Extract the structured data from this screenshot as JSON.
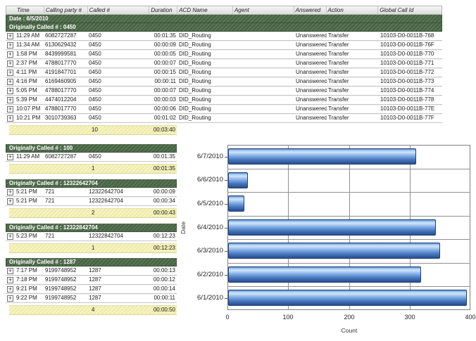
{
  "report": {
    "columns": [
      "",
      "Time",
      "Calling party #",
      "Called #",
      "Duration",
      "ACD Name",
      "Agent",
      "Answered",
      "Action",
      "Global Call Id"
    ],
    "date_band": "Date : 6/5/2010",
    "groups": [
      {
        "title": "Originally Called # : 0450",
        "wide": true,
        "rows": [
          [
            "11:29 AM",
            "6082727287",
            "0450",
            "00:01:35",
            "DID_Routing",
            "",
            "Unanswered",
            "Transfer",
            "10103-D0-0011B-768"
          ],
          [
            "11:34 AM",
            "6130629432",
            "0450",
            "00:00:09",
            "DID_Routing",
            "",
            "Unanswered",
            "Transfer",
            "10103-D0-0011B-76F"
          ],
          [
            "1:58 PM",
            "8439999581",
            "0450",
            "00:00:05",
            "DID_Routing",
            "",
            "Unanswered",
            "Transfer",
            "10103-D0-0011B-770"
          ],
          [
            "2:37 PM",
            "4788017770",
            "0450",
            "00:00:07",
            "DID_Routing",
            "",
            "Unanswered",
            "Transfer",
            "10103-D0-0011B-771"
          ],
          [
            "4:11 PM",
            "4191847701",
            "0450",
            "00:00:15",
            "DID_Routing",
            "",
            "Unanswered",
            "Transfer",
            "10103-D0-0011B-772"
          ],
          [
            "4:16 PM",
            "6169460905",
            "0450",
            "00:00:11",
            "DID_Routing",
            "",
            "Unanswered",
            "Transfer",
            "10103-D0-0011B-773"
          ],
          [
            "5:05 PM",
            "4788017770",
            "0450",
            "00:00:07",
            "DID_Routing",
            "",
            "Unanswered",
            "Transfer",
            "10103-D0-0011B-774"
          ],
          [
            "5:39 PM",
            "4474012204",
            "0450",
            "00:00:03",
            "DID_Routing",
            "",
            "Unanswered",
            "Transfer",
            "10103-D0-0011B-778"
          ],
          [
            "10:07 PM",
            "4788017770",
            "0450",
            "00:00:06",
            "DID_Routing",
            "",
            "Unanswered",
            "Transfer",
            "10103-D0-0011B-77E"
          ],
          [
            "10:21 PM",
            "3010739363",
            "0450",
            "00:01:02",
            "DID_Routing",
            "",
            "Unanswered",
            "Transfer",
            "10103-D0-0011B-77F"
          ]
        ],
        "summary": {
          "count": "10",
          "total_duration": "00:03:40"
        }
      },
      {
        "title": "Originally Called # : 100",
        "wide": false,
        "rows": [
          [
            "11:29 AM",
            "6082727287",
            "0450",
            "00:01:35"
          ]
        ],
        "summary": {
          "count": "1",
          "total_duration": "00:01:35"
        }
      },
      {
        "title": "Originally Called # : 12322642704",
        "wide": false,
        "rows": [
          [
            "5:21 PM",
            "721",
            "12322642704",
            "00:00:09"
          ],
          [
            "5:21 PM",
            "721",
            "12322642704",
            "00:00:34"
          ]
        ],
        "summary": {
          "count": "2",
          "total_duration": "00:00:43"
        }
      },
      {
        "title": "Originally Called # : 12322842704",
        "wide": false,
        "rows": [
          [
            "5:23 PM",
            "721",
            "12322842704",
            "00:12:23"
          ]
        ],
        "summary": {
          "count": "1",
          "total_duration": "00:12:23"
        }
      },
      {
        "title": "Originally Called # : 1287",
        "wide": false,
        "rows": [
          [
            "7:17 PM",
            "9199748952",
            "1287",
            "00:00:13"
          ],
          [
            "7:18 PM",
            "9199748952",
            "1287",
            "00:00:12"
          ],
          [
            "9:21 PM",
            "9199748952",
            "1287",
            "00:00:14"
          ],
          [
            "9:22 PM",
            "9199748952",
            "1287",
            "00:00:11"
          ]
        ],
        "summary": {
          "count": "4",
          "total_duration": "00:00:50"
        }
      }
    ],
    "expand_glyph": "+"
  },
  "chart_data": {
    "type": "bar",
    "orientation": "horizontal",
    "categories": [
      "6/7/2010",
      "6/6/2010",
      "6/5/2010",
      "6/4/2010",
      "6/3/2010",
      "6/2/2010",
      "6/1/2010"
    ],
    "values": [
      309,
      33,
      27,
      342,
      349,
      318,
      393
    ],
    "title": "",
    "xlabel": "Count",
    "ylabel": "Date",
    "xlim": [
      0,
      400
    ],
    "xticks": [
      0,
      100,
      200,
      300,
      400
    ],
    "grid": true,
    "legend": "none"
  },
  "colors": {
    "band_green": "#4d6a49",
    "summary_yellow": "#f7f4bd",
    "bar_edge": "#5b8ed6",
    "bar_highlight": "#cfe4fa",
    "bar_mid": "#6d9ada",
    "bar_low": "#2b4f8e"
  }
}
